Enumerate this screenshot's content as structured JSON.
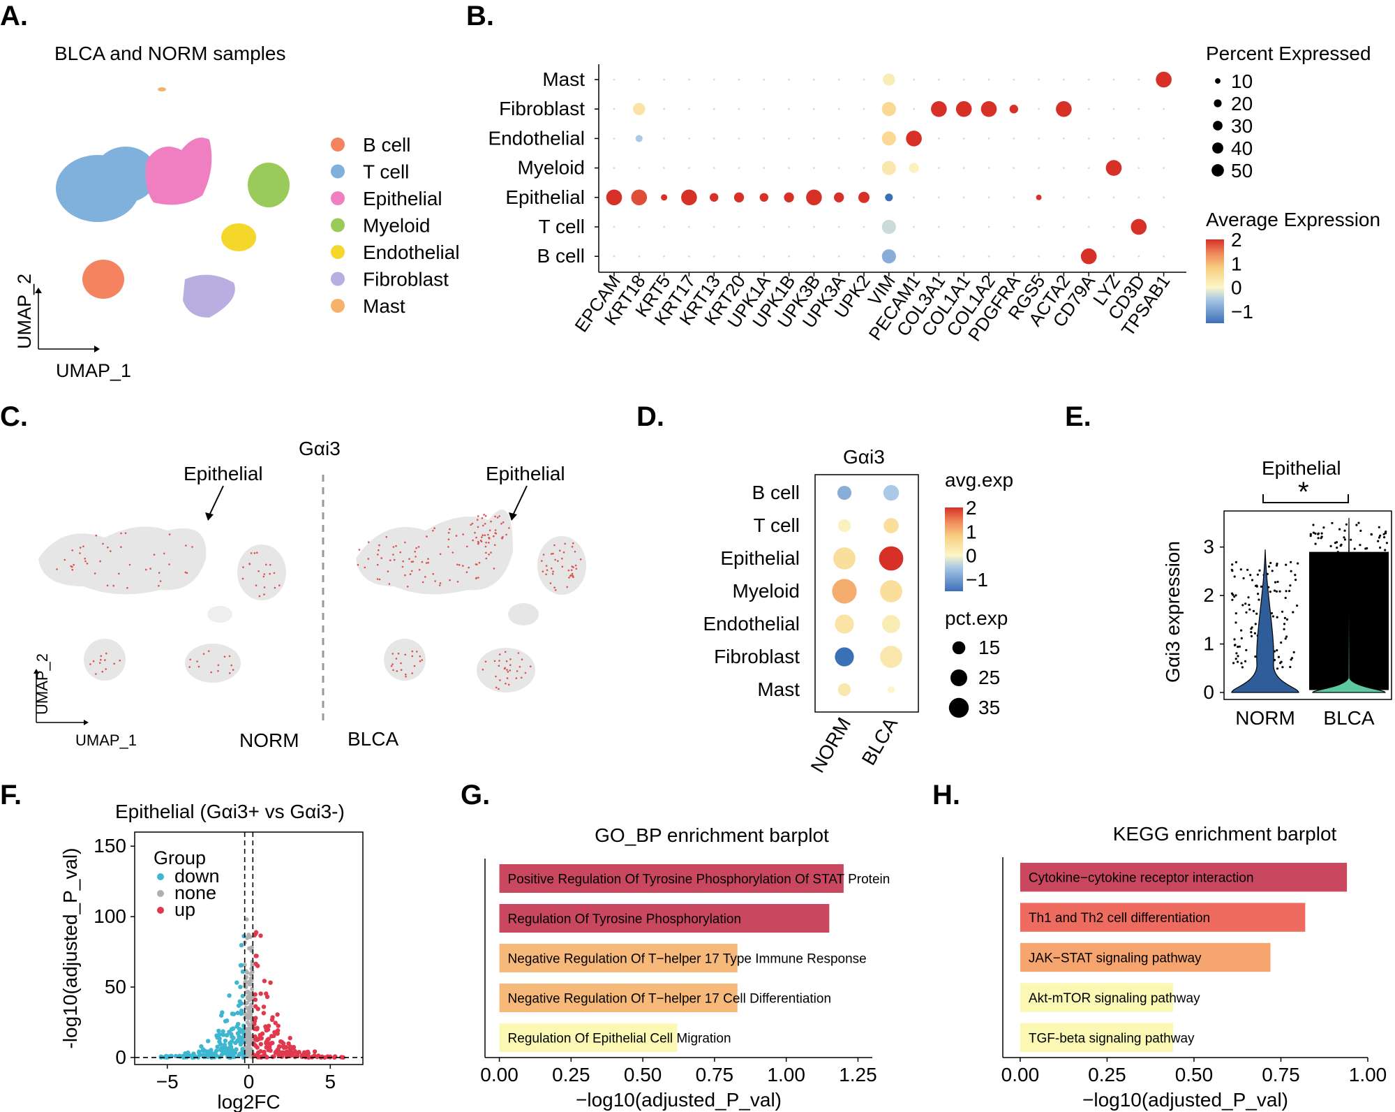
{
  "panels": {
    "A": {
      "letter": "A.",
      "title": "BLCA and NORM samples",
      "xlabel": "UMAP_1",
      "ylabel": "UMAP_2",
      "legend": [
        {
          "label": "B cell",
          "color": "#f4845f"
        },
        {
          "label": "T cell",
          "color": "#7fb1dc"
        },
        {
          "label": "Epithelial",
          "color": "#f07fc2"
        },
        {
          "label": "Myeloid",
          "color": "#9acb5a"
        },
        {
          "label": "Endothelial",
          "color": "#f5d72b"
        },
        {
          "label": "Fibroblast",
          "color": "#b9aee0"
        },
        {
          "label": "Mast",
          "color": "#f6b26b"
        }
      ]
    },
    "B": {
      "letter": "B.",
      "size_legend_title": "Percent Expressed",
      "color_legend_title": "Average Expression",
      "size_legend": [
        "10",
        "20",
        "30",
        "40",
        "50"
      ],
      "color_ticks": [
        "2",
        "1",
        "0",
        "−1"
      ]
    },
    "C": {
      "letter": "C.",
      "title": "Gαi3",
      "left_label": "NORM",
      "right_label": "BLCA",
      "annotation": "Epithelial",
      "xlabel": "UMAP_1",
      "ylabel": "UMAP_2"
    },
    "D": {
      "letter": "D.",
      "title": "Gαi3",
      "color_legend_title": "avg.exp",
      "size_legend_title": "pct.exp",
      "color_ticks": [
        "2",
        "1",
        "0",
        "−1"
      ],
      "size_legend": [
        "15",
        "25",
        "35"
      ]
    },
    "E": {
      "letter": "E.",
      "title": "Epithelial",
      "significance": "*",
      "ylabel": "Gαi3 expression"
    },
    "F": {
      "letter": "F.",
      "title": "Epithelial (Gαi3+ vs Gαi3-)",
      "legend_title": "Group",
      "legend": [
        {
          "label": "down",
          "color": "#3fb6cf"
        },
        {
          "label": "none",
          "color": "#b0b0b0"
        },
        {
          "label": "up",
          "color": "#e0394e"
        }
      ]
    },
    "G": {
      "letter": "G."
    },
    "H": {
      "letter": "H."
    }
  },
  "chart_data": [
    {
      "id": "B",
      "type": "dotplot",
      "rows": [
        "Mast",
        "Fibroblast",
        "Endothelial",
        "Myeloid",
        "Epithelial",
        "T cell",
        "B cell"
      ],
      "genes": [
        "EPCAM",
        "KRT18",
        "KRT5",
        "KRT17",
        "KRT13",
        "KRT20",
        "UPK1A",
        "UPK1B",
        "UPK3B",
        "UPK3A",
        "UPK2",
        "VIM",
        "PECAM1",
        "COL3A1",
        "COL1A1",
        "COL1A2",
        "PDGFRA",
        "RGS5",
        "ACTA2",
        "CD79A",
        "LYZ",
        "CD3D",
        "TPSAB1"
      ],
      "points": [
        {
          "row": "Mast",
          "gene": "VIM",
          "pct": 30,
          "avg": 0.2
        },
        {
          "row": "Mast",
          "gene": "TPSAB1",
          "pct": 50,
          "avg": 2
        },
        {
          "row": "Fibroblast",
          "gene": "KRT18",
          "pct": 30,
          "avg": 0.4
        },
        {
          "row": "Fibroblast",
          "gene": "VIM",
          "pct": 40,
          "avg": 0.6
        },
        {
          "row": "Fibroblast",
          "gene": "COL3A1",
          "pct": 50,
          "avg": 2
        },
        {
          "row": "Fibroblast",
          "gene": "COL1A1",
          "pct": 50,
          "avg": 2
        },
        {
          "row": "Fibroblast",
          "gene": "COL1A2",
          "pct": 50,
          "avg": 2
        },
        {
          "row": "Fibroblast",
          "gene": "PDGFRA",
          "pct": 15,
          "avg": 2
        },
        {
          "row": "Fibroblast",
          "gene": "ACTA2",
          "pct": 50,
          "avg": 2
        },
        {
          "row": "Endothelial",
          "gene": "KRT18",
          "pct": 10,
          "avg": -0.5
        },
        {
          "row": "Endothelial",
          "gene": "VIM",
          "pct": 40,
          "avg": 0.6
        },
        {
          "row": "Endothelial",
          "gene": "PECAM1",
          "pct": 50,
          "avg": 2
        },
        {
          "row": "Myeloid",
          "gene": "VIM",
          "pct": 40,
          "avg": 0.3
        },
        {
          "row": "Myeloid",
          "gene": "PECAM1",
          "pct": 20,
          "avg": 0.1
        },
        {
          "row": "Myeloid",
          "gene": "LYZ",
          "pct": 50,
          "avg": 2
        },
        {
          "row": "Epithelial",
          "gene": "EPCAM",
          "pct": 50,
          "avg": 2
        },
        {
          "row": "Epithelial",
          "gene": "KRT18",
          "pct": 50,
          "avg": 1.8
        },
        {
          "row": "Epithelial",
          "gene": "KRT5",
          "pct": 8,
          "avg": 2
        },
        {
          "row": "Epithelial",
          "gene": "KRT17",
          "pct": 50,
          "avg": 2
        },
        {
          "row": "Epithelial",
          "gene": "KRT13",
          "pct": 15,
          "avg": 2
        },
        {
          "row": "Epithelial",
          "gene": "KRT20",
          "pct": 20,
          "avg": 2
        },
        {
          "row": "Epithelial",
          "gene": "UPK1A",
          "pct": 15,
          "avg": 2
        },
        {
          "row": "Epithelial",
          "gene": "UPK1B",
          "pct": 20,
          "avg": 2
        },
        {
          "row": "Epithelial",
          "gene": "UPK3B",
          "pct": 50,
          "avg": 2
        },
        {
          "row": "Epithelial",
          "gene": "UPK3A",
          "pct": 20,
          "avg": 2
        },
        {
          "row": "Epithelial",
          "gene": "UPK2",
          "pct": 25,
          "avg": 2
        },
        {
          "row": "Epithelial",
          "gene": "VIM",
          "pct": 12,
          "avg": -1.5
        },
        {
          "row": "Epithelial",
          "gene": "RGS5",
          "pct": 6,
          "avg": 2
        },
        {
          "row": "T cell",
          "gene": "VIM",
          "pct": 40,
          "avg": -0.3
        },
        {
          "row": "T cell",
          "gene": "CD3D",
          "pct": 50,
          "avg": 2
        },
        {
          "row": "B cell",
          "gene": "VIM",
          "pct": 40,
          "avg": -0.8
        },
        {
          "row": "B cell",
          "gene": "CD79A",
          "pct": 50,
          "avg": 2
        }
      ],
      "size_scale": [
        10,
        20,
        30,
        40,
        50
      ],
      "color_range": [
        -1.5,
        2
      ]
    },
    {
      "id": "D",
      "type": "dotplot",
      "rows": [
        "B cell",
        "T cell",
        "Epithelial",
        "Myeloid",
        "Endothelial",
        "Fibroblast",
        "Mast"
      ],
      "columns": [
        "NORM",
        "BLCA"
      ],
      "points": [
        {
          "row": "B cell",
          "col": "NORM",
          "pct": 12,
          "avg": -0.8
        },
        {
          "row": "B cell",
          "col": "BLCA",
          "pct": 15,
          "avg": -0.5
        },
        {
          "row": "T cell",
          "col": "NORM",
          "pct": 10,
          "avg": 0.1
        },
        {
          "row": "T cell",
          "col": "BLCA",
          "pct": 14,
          "avg": 0.5
        },
        {
          "row": "Epithelial",
          "col": "NORM",
          "pct": 30,
          "avg": 0.5
        },
        {
          "row": "Epithelial",
          "col": "BLCA",
          "pct": 36,
          "avg": 2
        },
        {
          "row": "Myeloid",
          "col": "NORM",
          "pct": 37,
          "avg": 1.1
        },
        {
          "row": "Myeloid",
          "col": "BLCA",
          "pct": 30,
          "avg": 0.5
        },
        {
          "row": "Endothelial",
          "col": "NORM",
          "pct": 22,
          "avg": 0.4
        },
        {
          "row": "Endothelial",
          "col": "BLCA",
          "pct": 20,
          "avg": 0.2
        },
        {
          "row": "Fibroblast",
          "col": "NORM",
          "pct": 22,
          "avg": -1.5
        },
        {
          "row": "Fibroblast",
          "col": "BLCA",
          "pct": 30,
          "avg": 0.3
        },
        {
          "row": "Mast",
          "col": "NORM",
          "pct": 10,
          "avg": 0.3
        },
        {
          "row": "Mast",
          "col": "BLCA",
          "pct": 3,
          "avg": 0
        }
      ],
      "color_range": [
        -1.5,
        2
      ]
    },
    {
      "id": "E",
      "type": "violin",
      "categories": [
        "NORM",
        "BLCA"
      ],
      "ylim": [
        0,
        3.6
      ],
      "yticks": [
        0,
        1,
        2,
        3
      ],
      "colors": [
        "#2f5d9a",
        "#5ec8a0"
      ],
      "max_values": [
        2.95,
        3.6
      ]
    },
    {
      "id": "F",
      "type": "scatter",
      "xlabel": "log2FC",
      "ylabel": "-log10(adjusted_P_val)",
      "xlim": [
        -7,
        7
      ],
      "ylim": [
        -5,
        160
      ],
      "xticks": [
        -5,
        0,
        5
      ],
      "yticks": [
        0,
        50,
        100,
        150
      ],
      "vlines": [
        -0.25,
        0.25
      ],
      "hline": 0
    },
    {
      "id": "G",
      "type": "bar",
      "orientation": "horizontal",
      "title": "GO_BP enrichment barplot",
      "xlabel": "−log10(adjusted_P_val)",
      "xlim": [
        -0.05,
        1.3
      ],
      "xticks": [
        "0.00",
        "0.25",
        "0.50",
        "0.75",
        "1.00",
        "1.25"
      ],
      "categories": [
        "Positive Regulation Of Tyrosine Phosphorylation Of STAT Protein",
        "Regulation Of Tyrosine Phosphorylation",
        "Negative Regulation Of T−helper 17 Type Immune Response",
        "Negative Regulation Of T−helper 17 Cell Differentiation",
        "Regulation Of Epithelial Cell Migration"
      ],
      "values": [
        1.2,
        1.15,
        0.83,
        0.83,
        0.62
      ],
      "colors": [
        "#c9475f",
        "#c9475f",
        "#f7b97a",
        "#f7b97a",
        "#fbf8b4"
      ]
    },
    {
      "id": "H",
      "type": "bar",
      "orientation": "horizontal",
      "title": "KEGG enrichment barplot",
      "xlabel": "−log10(adjusted_P_val)",
      "xlim": [
        -0.05,
        1.0
      ],
      "xticks": [
        "0.00",
        "0.25",
        "0.50",
        "0.75",
        "1.00"
      ],
      "categories": [
        "Cytokine−cytokine receptor interaction",
        "Th1 and Th2 cell differentiation",
        "JAK−STAT signaling pathway",
        "Akt-mTOR signaling pathway",
        "TGF-beta signaling pathway"
      ],
      "values": [
        0.94,
        0.82,
        0.72,
        0.44,
        0.44
      ],
      "colors": [
        "#c9475f",
        "#ee6b60",
        "#f7a56e",
        "#fbf8b4",
        "#fbf8b4"
      ]
    }
  ]
}
